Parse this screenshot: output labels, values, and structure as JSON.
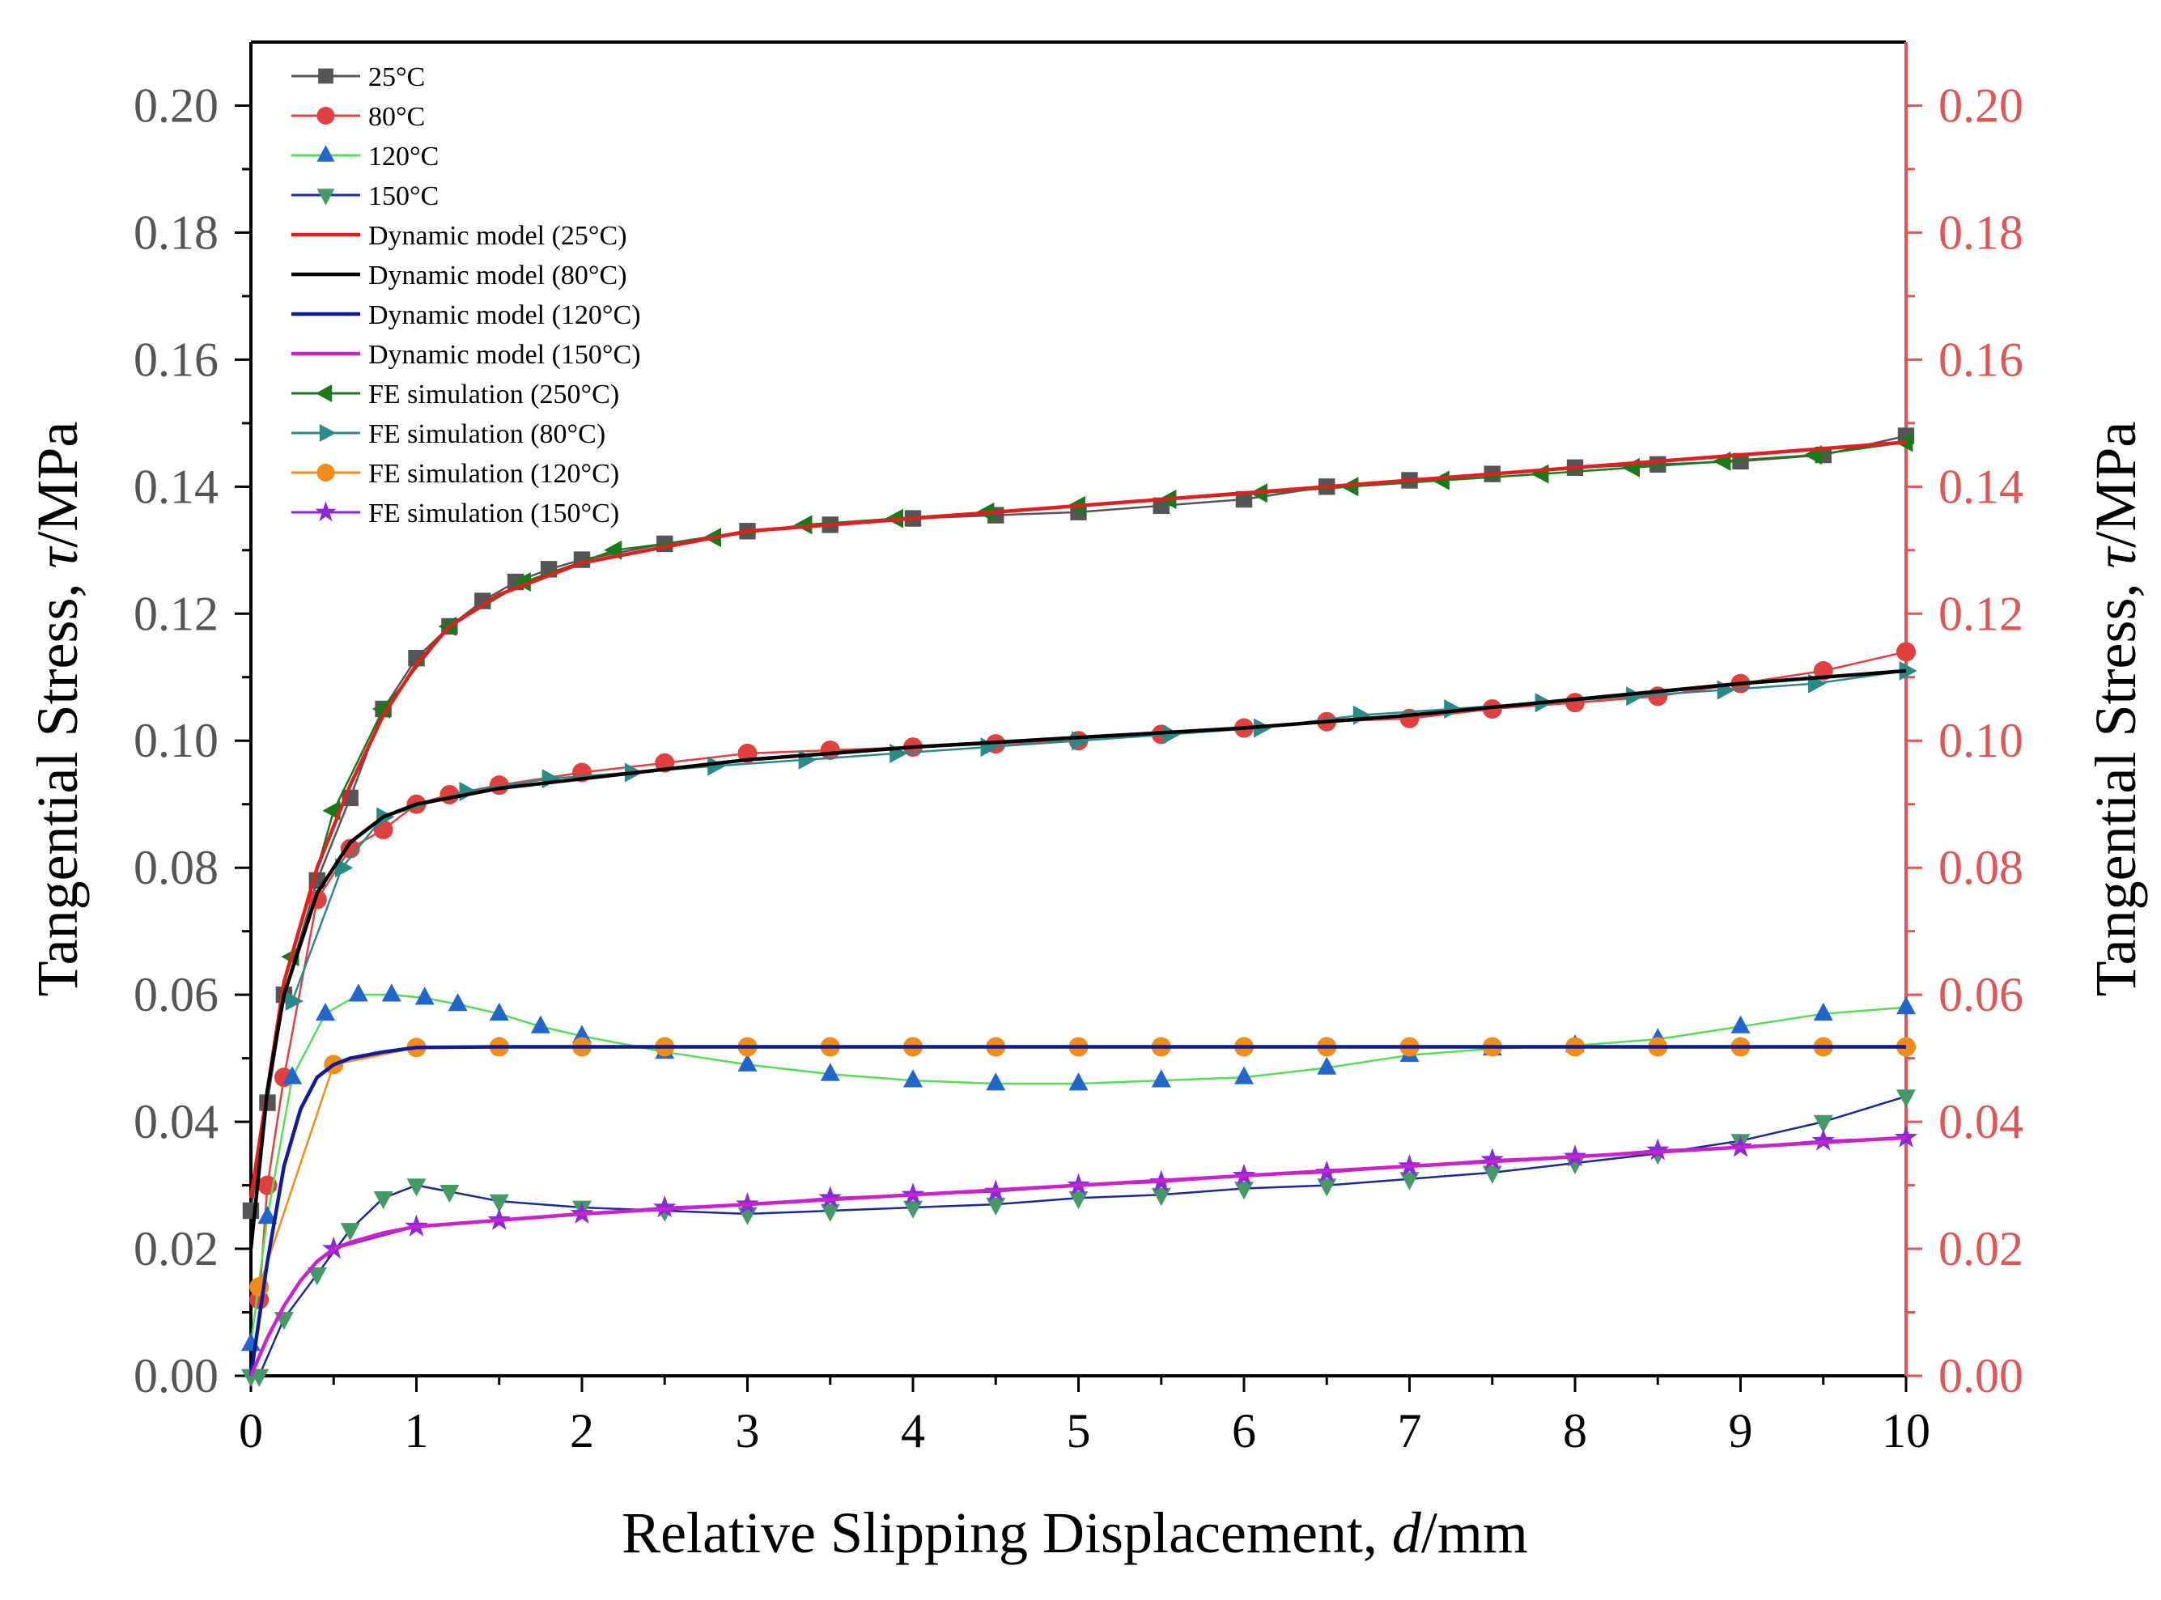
{
  "chart_data": {
    "type": "line",
    "title": "",
    "xlabel": "Relative Slipping Displacement, ",
    "xlabel_italic": "d",
    "xlabel_unit": "/mm",
    "ylabel": "Tangential Stress, ",
    "ylabel_italic": "τ",
    "ylabel_unit": "/MPa",
    "xlim": [
      0,
      10
    ],
    "ylim": [
      0,
      0.21
    ],
    "xticks": [
      "0",
      "1",
      "2",
      "3",
      "4",
      "5",
      "6",
      "7",
      "8",
      "9",
      "10"
    ],
    "yticks": [
      "0.00",
      "0.02",
      "0.04",
      "0.06",
      "0.08",
      "0.10",
      "0.12",
      "0.14",
      "0.16",
      "0.18",
      "0.20"
    ],
    "right_axis_color": "#e05555",
    "legend_position": "top-left",
    "series": [
      {
        "name": "25°C",
        "kind": "marker-line",
        "marker": "square",
        "color": "#555555",
        "x": [
          0,
          0.1,
          0.2,
          0.4,
          0.6,
          0.8,
          1.0,
          1.2,
          1.4,
          1.6,
          1.8,
          2.0,
          2.5,
          3.0,
          3.5,
          4.0,
          4.5,
          5.0,
          5.5,
          6.0,
          6.5,
          7.0,
          7.5,
          8.0,
          8.5,
          9.0,
          9.5,
          10.0
        ],
        "y": [
          0.026,
          0.043,
          0.06,
          0.078,
          0.091,
          0.105,
          0.113,
          0.118,
          0.122,
          0.125,
          0.127,
          0.1285,
          0.131,
          0.133,
          0.134,
          0.135,
          0.1355,
          0.136,
          0.137,
          0.138,
          0.14,
          0.141,
          0.142,
          0.143,
          0.1435,
          0.144,
          0.145,
          0.148
        ]
      },
      {
        "name": "80°C",
        "kind": "marker-line",
        "marker": "circle",
        "color": "#e04040",
        "x": [
          0.05,
          0.1,
          0.2,
          0.4,
          0.6,
          0.8,
          1.0,
          1.2,
          1.5,
          2.0,
          2.5,
          3.0,
          3.5,
          4.0,
          4.5,
          5.0,
          5.5,
          6.0,
          6.5,
          7.0,
          7.5,
          8.0,
          8.5,
          9.0,
          9.5,
          10.0
        ],
        "y": [
          0.012,
          0.03,
          0.047,
          0.075,
          0.083,
          0.086,
          0.09,
          0.0915,
          0.093,
          0.095,
          0.0965,
          0.098,
          0.0985,
          0.099,
          0.0995,
          0.1,
          0.101,
          0.102,
          0.103,
          0.1035,
          0.105,
          0.106,
          0.107,
          0.109,
          0.111,
          0.114
        ]
      },
      {
        "name": "120°C",
        "kind": "marker-line",
        "marker": "triangle-up",
        "color": "#2266cc",
        "line_color": "#55dd55",
        "x": [
          0,
          0.1,
          0.25,
          0.45,
          0.65,
          0.85,
          1.05,
          1.25,
          1.5,
          1.75,
          2.0,
          2.5,
          3.0,
          3.5,
          4.0,
          4.5,
          5.0,
          5.5,
          6.0,
          6.5,
          7.0,
          7.5,
          8.0,
          8.5,
          9.0,
          9.5,
          10.0
        ],
        "y": [
          0.005,
          0.025,
          0.047,
          0.057,
          0.06,
          0.06,
          0.0595,
          0.0585,
          0.057,
          0.055,
          0.0535,
          0.051,
          0.049,
          0.0475,
          0.0465,
          0.046,
          0.046,
          0.0465,
          0.047,
          0.0485,
          0.0505,
          0.0515,
          0.052,
          0.053,
          0.055,
          0.057,
          0.058
        ]
      },
      {
        "name": "150°C",
        "kind": "marker-line",
        "marker": "triangle-down",
        "color": "#449966",
        "line_color": "#1a2a99",
        "x": [
          0,
          0.05,
          0.2,
          0.4,
          0.6,
          0.8,
          1.0,
          1.2,
          1.5,
          2.0,
          2.5,
          3.0,
          3.5,
          4.0,
          4.5,
          5.0,
          5.5,
          6.0,
          6.5,
          7.0,
          7.5,
          8.0,
          8.5,
          9.0,
          9.5,
          10.0
        ],
        "y": [
          0.0,
          0.0,
          0.009,
          0.016,
          0.023,
          0.028,
          0.03,
          0.029,
          0.0275,
          0.0265,
          0.026,
          0.0255,
          0.026,
          0.0265,
          0.027,
          0.028,
          0.0285,
          0.0295,
          0.03,
          0.031,
          0.032,
          0.0335,
          0.035,
          0.037,
          0.04,
          0.044
        ]
      },
      {
        "name": "Dynamic model (25°C)",
        "kind": "line",
        "color": "#e02020",
        "x": [
          0,
          0.1,
          0.2,
          0.4,
          0.6,
          0.8,
          1.0,
          1.2,
          1.5,
          2.0,
          3.0,
          4.0,
          5.0,
          6.0,
          7.0,
          8.0,
          9.0,
          10.0
        ],
        "y": [
          0.028,
          0.045,
          0.062,
          0.08,
          0.093,
          0.104,
          0.112,
          0.118,
          0.123,
          0.128,
          0.133,
          0.135,
          0.137,
          0.139,
          0.141,
          0.143,
          0.145,
          0.147
        ]
      },
      {
        "name": "Dynamic model (80°C)",
        "kind": "line",
        "color": "#000000",
        "x": [
          0,
          0.1,
          0.2,
          0.4,
          0.6,
          0.8,
          1.0,
          1.2,
          1.5,
          2.0,
          3.0,
          4.0,
          5.0,
          6.0,
          7.0,
          8.0,
          9.0,
          10.0
        ],
        "y": [
          0.02,
          0.045,
          0.06,
          0.076,
          0.084,
          0.088,
          0.09,
          0.091,
          0.0925,
          0.094,
          0.097,
          0.099,
          0.1005,
          0.102,
          0.104,
          0.1065,
          0.109,
          0.111
        ]
      },
      {
        "name": "Dynamic model (120°C)",
        "kind": "line",
        "color": "#101b9a",
        "x": [
          0,
          0.1,
          0.2,
          0.3,
          0.4,
          0.5,
          0.6,
          0.8,
          1.0,
          1.5,
          2.0,
          4.0,
          6.0,
          8.0,
          10.0
        ],
        "y": [
          0.0,
          0.018,
          0.033,
          0.042,
          0.047,
          0.049,
          0.05,
          0.051,
          0.0517,
          0.0518,
          0.0518,
          0.0518,
          0.0518,
          0.0518,
          0.0518
        ]
      },
      {
        "name": "Dynamic model (150°C)",
        "kind": "line",
        "color": "#cc22cc",
        "x": [
          0,
          0.1,
          0.2,
          0.3,
          0.4,
          0.5,
          0.6,
          0.8,
          1.0,
          1.5,
          2.0,
          3.0,
          4.0,
          5.0,
          6.0,
          7.0,
          8.0,
          9.0,
          10.0
        ],
        "y": [
          0.0,
          0.006,
          0.011,
          0.015,
          0.018,
          0.02,
          0.021,
          0.0225,
          0.0235,
          0.0245,
          0.0255,
          0.027,
          0.0285,
          0.03,
          0.0315,
          0.033,
          0.0345,
          0.036,
          0.0375
        ]
      },
      {
        "name": "FE simulation (250°C)",
        "kind": "marker-line",
        "marker": "triangle-left",
        "color": "#1a7a1a",
        "x": [
          0.25,
          0.5,
          0.8,
          1.2,
          1.65,
          2.2,
          2.8,
          3.35,
          3.9,
          4.45,
          5.0,
          5.55,
          6.1,
          6.65,
          7.2,
          7.8,
          8.35,
          8.9,
          9.45,
          10.0
        ],
        "y": [
          0.066,
          0.089,
          0.105,
          0.118,
          0.125,
          0.13,
          0.132,
          0.134,
          0.135,
          0.136,
          0.137,
          0.138,
          0.139,
          0.14,
          0.141,
          0.142,
          0.143,
          0.144,
          0.145,
          0.147
        ]
      },
      {
        "name": "FE simulation (80°C)",
        "kind": "marker-line",
        "marker": "triangle-right",
        "color": "#2a8a8a",
        "x": [
          0.25,
          0.55,
          0.8,
          1.3,
          1.8,
          2.3,
          2.8,
          3.35,
          3.9,
          4.45,
          5.0,
          5.55,
          6.1,
          6.7,
          7.25,
          7.8,
          8.35,
          8.9,
          9.45,
          10.0
        ],
        "y": [
          0.059,
          0.08,
          0.088,
          0.092,
          0.094,
          0.095,
          0.096,
          0.097,
          0.098,
          0.099,
          0.1,
          0.101,
          0.102,
          0.104,
          0.105,
          0.106,
          0.107,
          0.108,
          0.109,
          0.111
        ]
      },
      {
        "name": "FE simulation (120°C)",
        "kind": "marker-line",
        "marker": "circle",
        "color": "#f08c1a",
        "x": [
          0.05,
          0.5,
          1.0,
          1.5,
          2.0,
          2.5,
          3.0,
          3.5,
          4.0,
          4.5,
          5.0,
          5.5,
          6.0,
          6.5,
          7.0,
          7.5,
          8.0,
          8.5,
          9.0,
          9.5,
          10.0
        ],
        "y": [
          0.014,
          0.049,
          0.0517,
          0.0518,
          0.0518,
          0.0518,
          0.0518,
          0.0518,
          0.0518,
          0.0518,
          0.0518,
          0.0518,
          0.0518,
          0.0518,
          0.0518,
          0.0518,
          0.0518,
          0.0518,
          0.0518,
          0.0518,
          0.0518
        ]
      },
      {
        "name": "FE simulation (150°C)",
        "kind": "marker-line",
        "marker": "star",
        "color": "#8a2ad6",
        "x": [
          0.5,
          1.0,
          1.5,
          2.0,
          2.5,
          3.0,
          3.5,
          4.0,
          4.5,
          5.0,
          5.5,
          6.0,
          6.5,
          7.0,
          7.5,
          8.0,
          8.5,
          9.0,
          9.5,
          10.0
        ],
        "y": [
          0.02,
          0.0235,
          0.0245,
          0.0255,
          0.0265,
          0.027,
          0.028,
          0.0285,
          0.029,
          0.03,
          0.0305,
          0.0315,
          0.032,
          0.033,
          0.034,
          0.0345,
          0.0355,
          0.036,
          0.037,
          0.0375
        ]
      }
    ]
  }
}
